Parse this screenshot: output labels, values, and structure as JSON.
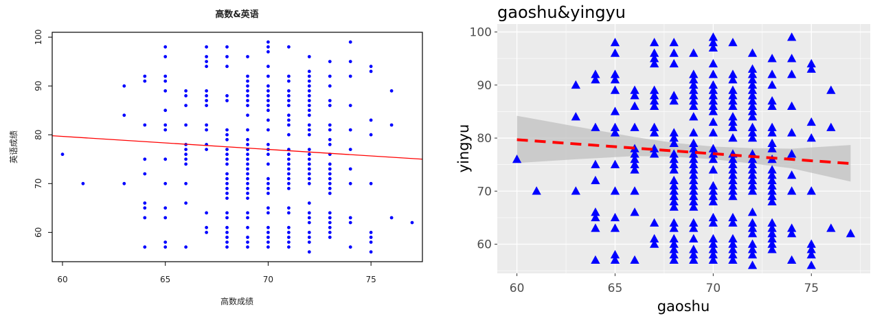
{
  "colors": {
    "point": "#0000ff",
    "fit_line_left": "#ff0000",
    "fit_line_right": "#ff0000",
    "ribbon": "#bebebe",
    "panel_bg": "#ebebeb",
    "grid": "#ffffff"
  },
  "chart_data": [
    {
      "type": "scatter",
      "title": "高数&英语",
      "xlabel": "高数成绩",
      "ylabel": "英语成绩",
      "xlim": [
        59.5,
        77.5
      ],
      "ylim": [
        54,
        101
      ],
      "xticks": [
        60,
        65,
        70,
        75
      ],
      "yticks": [
        60,
        70,
        80,
        90,
        100
      ],
      "marker": "circle",
      "grid": false,
      "fit_line": {
        "x": [
          59.5,
          77.5
        ],
        "y": [
          79.8,
          75.0
        ]
      },
      "points": "shared"
    },
    {
      "type": "scatter",
      "title": "gaoshu&yingyu",
      "xlabel": "gaoshu",
      "ylabel": "yingyu",
      "xlim": [
        59,
        78
      ],
      "ylim": [
        54.5,
        101.5
      ],
      "xticks": [
        60,
        65,
        70,
        75
      ],
      "yticks": [
        60,
        70,
        80,
        90,
        100
      ],
      "marker": "triangle",
      "grid": true,
      "fit_line": {
        "x": [
          60,
          77
        ],
        "y": [
          79.7,
          75.2
        ],
        "style": "dashed"
      },
      "confidence_band": {
        "x": [
          60,
          63,
          66,
          68,
          70,
          72,
          74,
          77
        ],
        "lower": [
          75.3,
          76.0,
          76.6,
          76.5,
          76.0,
          75.2,
          74.3,
          71.8
        ],
        "upper": [
          84.2,
          82.2,
          80.2,
          79.1,
          78.4,
          78.1,
          78.0,
          78.7
        ]
      },
      "points": "shared"
    }
  ],
  "points": [
    [
      60,
      76
    ],
    [
      61,
      70
    ],
    [
      63,
      90
    ],
    [
      63,
      84
    ],
    [
      63,
      70
    ],
    [
      64,
      92
    ],
    [
      64,
      91
    ],
    [
      64,
      82
    ],
    [
      64,
      75
    ],
    [
      64,
      72
    ],
    [
      64,
      66
    ],
    [
      64,
      65
    ],
    [
      64,
      63
    ],
    [
      64,
      57
    ],
    [
      65,
      98
    ],
    [
      65,
      96
    ],
    [
      65,
      92
    ],
    [
      65,
      91
    ],
    [
      65,
      89
    ],
    [
      65,
      85
    ],
    [
      65,
      82
    ],
    [
      65,
      81
    ],
    [
      65,
      75
    ],
    [
      65,
      70
    ],
    [
      65,
      65
    ],
    [
      65,
      63
    ],
    [
      65,
      58
    ],
    [
      65,
      57
    ],
    [
      66,
      89
    ],
    [
      66,
      88
    ],
    [
      66,
      86
    ],
    [
      66,
      82
    ],
    [
      66,
      78
    ],
    [
      66,
      77
    ],
    [
      66,
      76
    ],
    [
      66,
      75
    ],
    [
      66,
      74
    ],
    [
      66,
      70
    ],
    [
      66,
      66
    ],
    [
      66,
      57
    ],
    [
      67,
      98
    ],
    [
      67,
      96
    ],
    [
      67,
      95
    ],
    [
      67,
      94
    ],
    [
      67,
      89
    ],
    [
      67,
      88
    ],
    [
      67,
      87
    ],
    [
      67,
      86
    ],
    [
      67,
      82
    ],
    [
      67,
      81
    ],
    [
      67,
      78
    ],
    [
      67,
      77
    ],
    [
      67,
      64
    ],
    [
      67,
      61
    ],
    [
      67,
      60
    ],
    [
      68,
      98
    ],
    [
      68,
      96
    ],
    [
      68,
      94
    ],
    [
      68,
      88
    ],
    [
      68,
      87
    ],
    [
      68,
      81
    ],
    [
      68,
      80
    ],
    [
      68,
      79
    ],
    [
      68,
      77
    ],
    [
      68,
      76
    ],
    [
      68,
      75
    ],
    [
      68,
      74
    ],
    [
      68,
      72
    ],
    [
      68,
      71
    ],
    [
      68,
      70
    ],
    [
      68,
      69
    ],
    [
      68,
      68
    ],
    [
      68,
      67
    ],
    [
      68,
      64
    ],
    [
      68,
      63
    ],
    [
      68,
      61
    ],
    [
      68,
      60
    ],
    [
      68,
      59
    ],
    [
      68,
      58
    ],
    [
      68,
      57
    ],
    [
      69,
      96
    ],
    [
      69,
      92
    ],
    [
      69,
      91
    ],
    [
      69,
      90
    ],
    [
      69,
      89
    ],
    [
      69,
      88
    ],
    [
      69,
      87
    ],
    [
      69,
      86
    ],
    [
      69,
      84
    ],
    [
      69,
      81
    ],
    [
      69,
      79
    ],
    [
      69,
      78
    ],
    [
      69,
      77
    ],
    [
      69,
      76
    ],
    [
      69,
      75
    ],
    [
      69,
      74
    ],
    [
      69,
      73
    ],
    [
      69,
      72
    ],
    [
      69,
      71
    ],
    [
      69,
      70
    ],
    [
      69,
      69
    ],
    [
      69,
      68
    ],
    [
      69,
      67
    ],
    [
      69,
      64
    ],
    [
      69,
      63
    ],
    [
      69,
      61
    ],
    [
      69,
      59
    ],
    [
      69,
      58
    ],
    [
      69,
      57
    ],
    [
      70,
      99
    ],
    [
      70,
      98
    ],
    [
      70,
      97
    ],
    [
      70,
      94
    ],
    [
      70,
      92
    ],
    [
      70,
      90
    ],
    [
      70,
      89
    ],
    [
      70,
      88
    ],
    [
      70,
      87
    ],
    [
      70,
      86
    ],
    [
      70,
      85
    ],
    [
      70,
      83
    ],
    [
      70,
      81
    ],
    [
      70,
      78
    ],
    [
      70,
      77
    ],
    [
      70,
      76
    ],
    [
      70,
      74
    ],
    [
      70,
      71
    ],
    [
      70,
      70
    ],
    [
      70,
      69
    ],
    [
      70,
      68
    ],
    [
      70,
      65
    ],
    [
      70,
      64
    ],
    [
      70,
      61
    ],
    [
      70,
      60
    ],
    [
      70,
      59
    ],
    [
      70,
      58
    ],
    [
      70,
      57
    ],
    [
      71,
      98
    ],
    [
      71,
      92
    ],
    [
      71,
      91
    ],
    [
      71,
      89
    ],
    [
      71,
      88
    ],
    [
      71,
      87
    ],
    [
      71,
      86
    ],
    [
      71,
      84
    ],
    [
      71,
      83
    ],
    [
      71,
      82
    ],
    [
      71,
      80
    ],
    [
      71,
      77
    ],
    [
      71,
      76
    ],
    [
      71,
      75
    ],
    [
      71,
      74
    ],
    [
      71,
      73
    ],
    [
      71,
      72
    ],
    [
      71,
      71
    ],
    [
      71,
      70
    ],
    [
      71,
      69
    ],
    [
      71,
      65
    ],
    [
      71,
      64
    ],
    [
      71,
      61
    ],
    [
      71,
      60
    ],
    [
      71,
      59
    ],
    [
      71,
      58
    ],
    [
      71,
      57
    ],
    [
      72,
      96
    ],
    [
      72,
      93
    ],
    [
      72,
      92
    ],
    [
      72,
      91
    ],
    [
      72,
      90
    ],
    [
      72,
      89
    ],
    [
      72,
      88
    ],
    [
      72,
      87
    ],
    [
      72,
      86
    ],
    [
      72,
      85
    ],
    [
      72,
      84
    ],
    [
      72,
      82
    ],
    [
      72,
      81
    ],
    [
      72,
      80
    ],
    [
      72,
      77
    ],
    [
      72,
      76
    ],
    [
      72,
      75
    ],
    [
      72,
      74
    ],
    [
      72,
      73
    ],
    [
      72,
      72
    ],
    [
      72,
      71
    ],
    [
      72,
      70
    ],
    [
      72,
      66
    ],
    [
      72,
      64
    ],
    [
      72,
      63
    ],
    [
      72,
      62
    ],
    [
      72,
      60
    ],
    [
      72,
      59
    ],
    [
      72,
      58
    ],
    [
      72,
      56
    ],
    [
      73,
      95
    ],
    [
      73,
      92
    ],
    [
      73,
      90
    ],
    [
      73,
      87
    ],
    [
      73,
      86
    ],
    [
      73,
      82
    ],
    [
      73,
      81
    ],
    [
      73,
      79
    ],
    [
      73,
      78
    ],
    [
      73,
      76
    ],
    [
      73,
      74
    ],
    [
      73,
      73
    ],
    [
      73,
      72
    ],
    [
      73,
      71
    ],
    [
      73,
      70
    ],
    [
      73,
      69
    ],
    [
      73,
      68
    ],
    [
      73,
      64
    ],
    [
      73,
      63
    ],
    [
      73,
      62
    ],
    [
      73,
      61
    ],
    [
      73,
      60
    ],
    [
      73,
      59
    ],
    [
      74,
      99
    ],
    [
      74,
      95
    ],
    [
      74,
      92
    ],
    [
      74,
      86
    ],
    [
      74,
      81
    ],
    [
      74,
      77
    ],
    [
      74,
      73
    ],
    [
      74,
      70
    ],
    [
      74,
      63
    ],
    [
      74,
      62
    ],
    [
      74,
      57
    ],
    [
      75,
      94
    ],
    [
      75,
      93
    ],
    [
      75,
      83
    ],
    [
      75,
      80
    ],
    [
      75,
      70
    ],
    [
      75,
      60
    ],
    [
      75,
      59
    ],
    [
      75,
      58
    ],
    [
      75,
      56
    ],
    [
      76,
      89
    ],
    [
      76,
      82
    ],
    [
      76,
      63
    ],
    [
      77,
      62
    ]
  ]
}
